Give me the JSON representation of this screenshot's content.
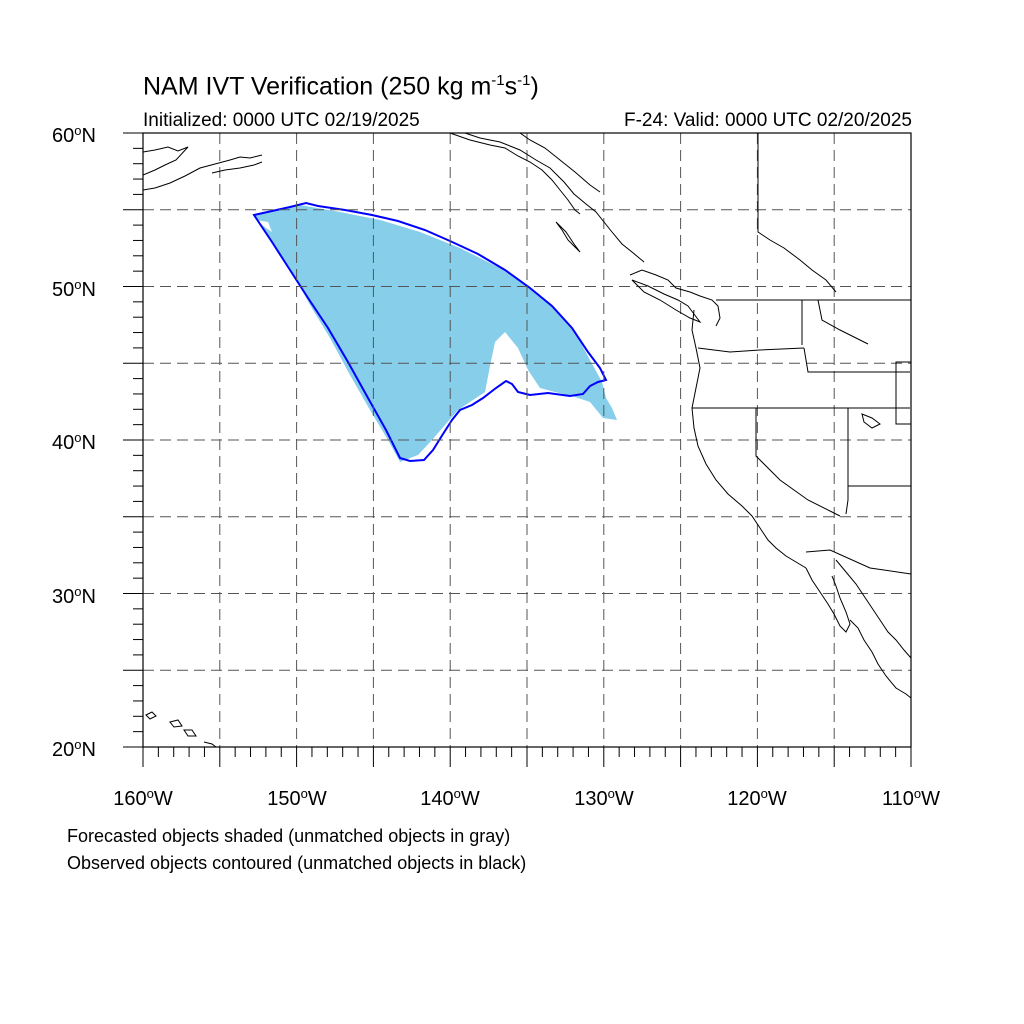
{
  "header": {
    "title_main": "NAM IVT Verification (250 kg m",
    "title_exp1": "-1",
    "title_mid": "s",
    "title_exp2": "-1",
    "title_end": ")",
    "initialized": "Initialized: 0000 UTC 02/19/2025",
    "valid": "F-24: Valid: 0000 UTC 02/20/2025"
  },
  "map": {
    "lon_range": [
      -160,
      -110
    ],
    "lat_range": [
      20,
      60
    ],
    "grid_lons": [
      -155,
      -150,
      -145,
      -140,
      -135,
      -130,
      -125,
      -120,
      -115
    ],
    "grid_lats": [
      25,
      30,
      35,
      40,
      45,
      50,
      55
    ],
    "colors": {
      "forecast_fill": "#87ceeb",
      "observed_contour": "#0000ff",
      "coastline": "#000000",
      "grid": "#555555"
    }
  },
  "axes": {
    "lat_labels": [
      {
        "deg": "60",
        "hemi": "N"
      },
      {
        "deg": "50",
        "hemi": "N"
      },
      {
        "deg": "40",
        "hemi": "N"
      },
      {
        "deg": "30",
        "hemi": "N"
      },
      {
        "deg": "20",
        "hemi": "N"
      }
    ],
    "lon_labels": [
      {
        "deg": "160",
        "hemi": "W"
      },
      {
        "deg": "150",
        "hemi": "W"
      },
      {
        "deg": "140",
        "hemi": "W"
      },
      {
        "deg": "130",
        "hemi": "W"
      },
      {
        "deg": "120",
        "hemi": "W"
      },
      {
        "deg": "110",
        "hemi": "W"
      }
    ]
  },
  "captions": {
    "line1": "Forecasted objects shaded (unmatched objects in gray)",
    "line2": "Observed objects contoured (unmatched objects in black)"
  }
}
